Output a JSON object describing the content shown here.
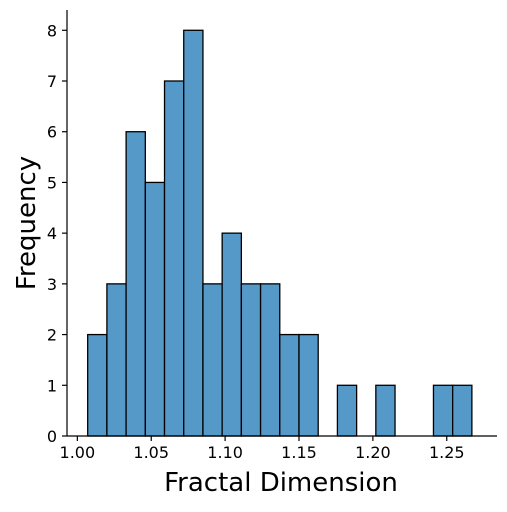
{
  "chart_data": {
    "type": "bar",
    "subtype": "histogram",
    "title": "",
    "xlabel": "Fractal Dimension",
    "ylabel": "Frequency",
    "bar_color": "#5599c8",
    "edge_color": "#000000",
    "bin_width": 0.013,
    "bin_start": 1.007,
    "counts": [
      2,
      3,
      6,
      5,
      7,
      8,
      3,
      4,
      3,
      3,
      2,
      2,
      0,
      1,
      0,
      1,
      0,
      0,
      1,
      1
    ],
    "xlim": [
      0.993,
      1.284
    ],
    "ylim": [
      0,
      8.4
    ],
    "xticks": [
      1.0,
      1.05,
      1.1,
      1.15,
      1.2,
      1.25
    ],
    "xtick_labels": [
      "1.00",
      "1.05",
      "1.10",
      "1.15",
      "1.20",
      "1.25"
    ],
    "yticks": [
      0,
      1,
      2,
      3,
      4,
      5,
      6,
      7,
      8
    ],
    "ytick_labels": [
      "0",
      "1",
      "2",
      "3",
      "4",
      "5",
      "6",
      "7",
      "8"
    ],
    "grid": false,
    "legend": null
  }
}
